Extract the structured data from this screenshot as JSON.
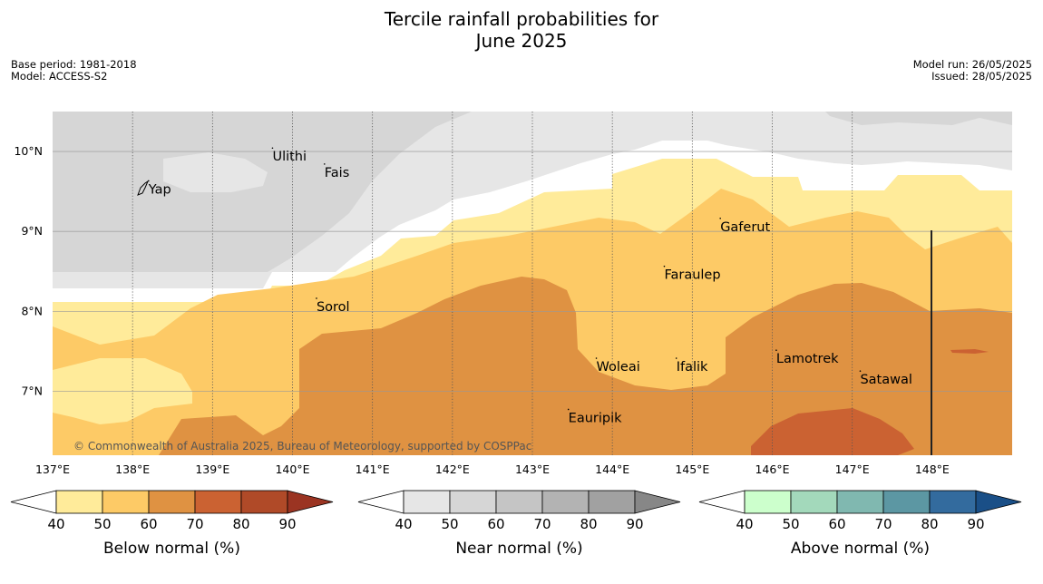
{
  "title": {
    "line1": "Tercile rainfall probabilities for",
    "line2": "June 2025"
  },
  "meta": {
    "base_period": "Base period: 1981-2018",
    "model": "Model: ACCESS-S2",
    "model_run": "Model run: 26/05/2025",
    "issued": "Issued: 28/05/2025"
  },
  "copyright": "© Commonwealth of Australia 2025, Bureau of Meteorology, supported by COSPPac",
  "map": {
    "lon_range": [
      137.0,
      149.0
    ],
    "lat_range": [
      6.2,
      10.5
    ],
    "lon_ticks": [
      "137°E",
      "138°E",
      "139°E",
      "140°E",
      "141°E",
      "142°E",
      "143°E",
      "144°E",
      "145°E",
      "146°E",
      "147°E",
      "148°E"
    ],
    "lat_ticks": [
      "10°N",
      "9°N",
      "8°N",
      "7°N"
    ],
    "places": [
      {
        "name": "Ulithi",
        "lon": 139.75,
        "lat": 9.93
      },
      {
        "name": "Fais",
        "lon": 140.4,
        "lat": 9.73
      },
      {
        "name": "Yap",
        "lon": 138.2,
        "lat": 9.52
      },
      {
        "name": "Gaferut",
        "lon": 145.35,
        "lat": 9.05
      },
      {
        "name": "Faraulep",
        "lon": 144.65,
        "lat": 8.45
      },
      {
        "name": "Sorol",
        "lon": 140.3,
        "lat": 8.05
      },
      {
        "name": "Lamotrek",
        "lon": 146.05,
        "lat": 7.4
      },
      {
        "name": "Woleai",
        "lon": 143.8,
        "lat": 7.3
      },
      {
        "name": "Ifalik",
        "lon": 144.8,
        "lat": 7.3
      },
      {
        "name": "Satawal",
        "lon": 147.1,
        "lat": 7.14
      },
      {
        "name": "Eauripik",
        "lon": 143.45,
        "lat": 6.66
      }
    ]
  },
  "colorbars": [
    {
      "label": "Below normal (%)",
      "ticks": [
        "40",
        "50",
        "60",
        "70",
        "80",
        "90"
      ],
      "colors": [
        "#ffeb9a",
        "#fdca66",
        "#df9242",
        "#cb6232",
        "#b04a28",
        "#9b3422"
      ]
    },
    {
      "label": "Near normal (%)",
      "ticks": [
        "40",
        "50",
        "60",
        "70",
        "80",
        "90"
      ],
      "colors": [
        "#e6e6e6",
        "#d6d6d6",
        "#c5c5c5",
        "#b3b3b3",
        "#a1a1a1",
        "#878787"
      ]
    },
    {
      "label": "Above normal (%)",
      "ticks": [
        "40",
        "50",
        "60",
        "70",
        "80",
        "90"
      ],
      "colors": [
        "#ccffcc",
        "#a3d9bb",
        "#80b8b0",
        "#5c97a3",
        "#336b9e",
        "#1a4f87"
      ]
    }
  ]
}
